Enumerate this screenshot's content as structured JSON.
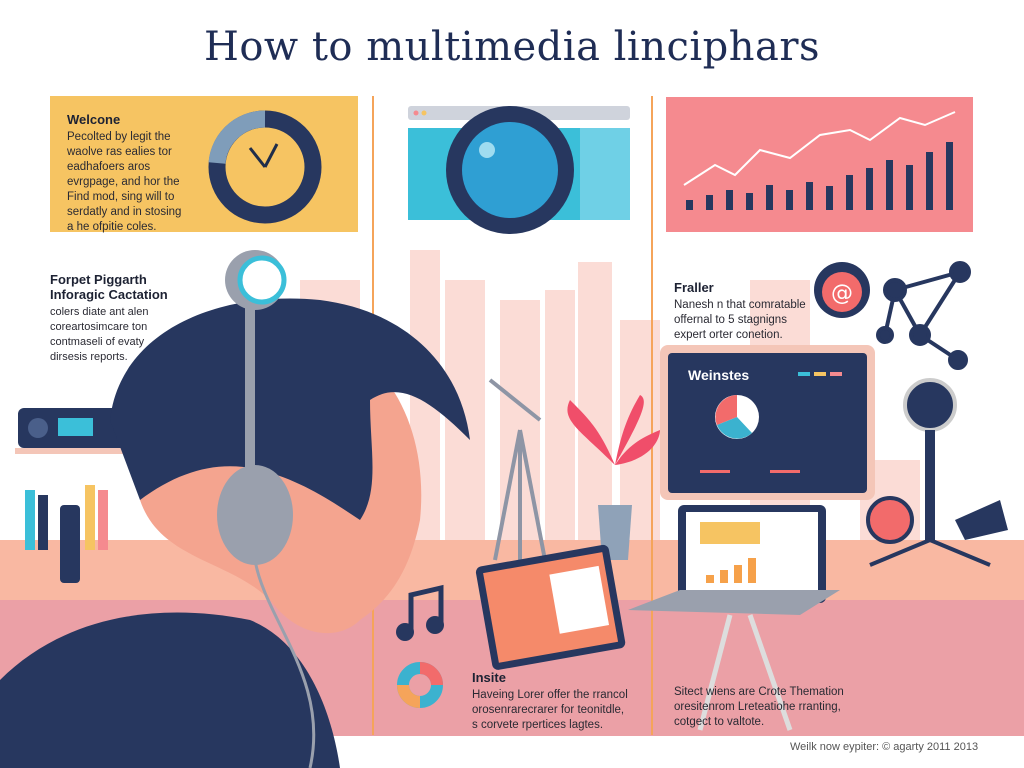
{
  "title": "How to multimedia linciphars",
  "welcome": {
    "heading": "Welcone",
    "body": "Pecolted by legit the waolve ras ealies tor eadhafoers aros evrgpage, and hor the Find mod, sing will to serdatly and in stosing a he ofpitie coles."
  },
  "left_block": {
    "heading_line1": "Forpet Piggarth",
    "heading_line2": "Inforagic Cactation",
    "body": "colers diate ant alen coreartosimcare ton contmaseli of evaty dirsesis reports."
  },
  "right_block": {
    "heading": "Fraller",
    "body": "Nanesh n that comratable offernal to 5 stagnigns expert orter conetion."
  },
  "monitor": {
    "title": "Weinstes"
  },
  "bottom_left_block": {
    "heading": "Insite",
    "body": "Haveing Lorer offer the rrancol orosenrarecrarer for teonitdle, s corvete rpertices lagtes."
  },
  "bottom_right_block": {
    "body": "Sitect wiens are Crote Themation oresitenrom Lreteatiohe rranting, cotgect to valtote."
  },
  "footer": "Weilk now eypiter: © agarty 2011 2013",
  "colors": {
    "navy": "#27375f",
    "yellow": "#f6c462",
    "pink": "#f58a8f",
    "teal": "#3bbfd9",
    "orange": "#f5a45a"
  },
  "icons": [
    "clock-donut-icon",
    "camera-lens-icon",
    "bar-line-chart-icon",
    "at-sign-icon",
    "network-icon",
    "music-note-icon",
    "donut-chart-icon"
  ]
}
